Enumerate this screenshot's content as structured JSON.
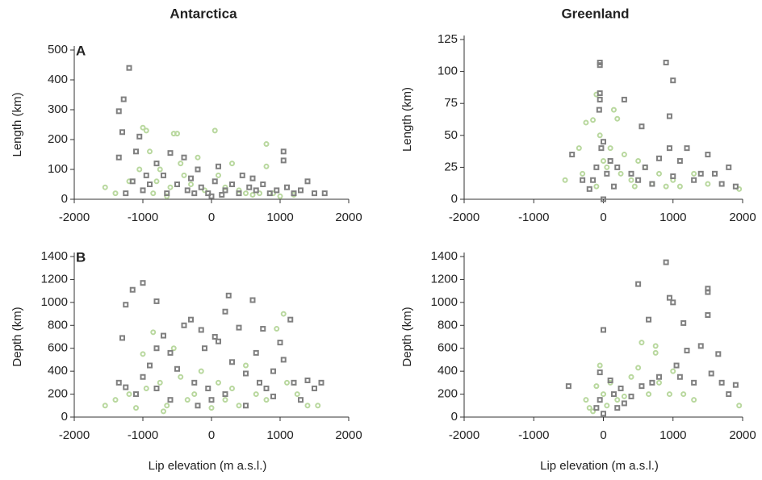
{
  "chart_data": [
    {
      "type": "scatter",
      "title": "Antarctica",
      "panel_label": "A",
      "ylabel": "Length (km)",
      "xlim": [
        -2000,
        2000
      ],
      "xticks": [
        -2000,
        -1000,
        0,
        1000,
        2000
      ],
      "ylim": [
        0,
        500
      ],
      "yticks": [
        0,
        100,
        200,
        300,
        400,
        500
      ],
      "series": [
        {
          "color": "#b9d89f",
          "marker": "circle",
          "x": [
            -1550,
            -1400,
            -1200,
            -1000,
            -950,
            -900,
            -1050,
            -800,
            -750,
            -600,
            -550,
            -500,
            -450,
            -400,
            -300,
            -200,
            -100,
            50,
            100,
            200,
            300,
            400,
            500,
            600,
            700,
            800,
            800,
            900,
            1000,
            1200,
            -850,
            -650
          ],
          "values": [
            40,
            20,
            60,
            240,
            230,
            160,
            100,
            60,
            100,
            40,
            220,
            220,
            120,
            80,
            50,
            140,
            30,
            230,
            80,
            40,
            120,
            30,
            20,
            15,
            20,
            185,
            110,
            20,
            10,
            15,
            20,
            10
          ]
        },
        {
          "color": "#808080",
          "marker": "square",
          "x": [
            -1200,
            -1280,
            -1350,
            -1300,
            -1050,
            -1100,
            -1350,
            -1150,
            -1000,
            -900,
            -800,
            -700,
            -600,
            -500,
            -400,
            -350,
            -300,
            -200,
            -150,
            -50,
            0,
            50,
            100,
            200,
            300,
            400,
            450,
            550,
            650,
            750,
            850,
            950,
            1050,
            1050,
            1100,
            1200,
            1300,
            1400,
            1500,
            1650,
            -1250,
            -950,
            -650,
            -250,
            150,
            600
          ],
          "values": [
            440,
            335,
            295,
            225,
            210,
            160,
            140,
            60,
            30,
            50,
            120,
            80,
            155,
            50,
            140,
            30,
            70,
            100,
            40,
            20,
            10,
            60,
            110,
            30,
            50,
            20,
            80,
            40,
            30,
            50,
            20,
            30,
            160,
            130,
            40,
            20,
            30,
            60,
            20,
            20,
            20,
            80,
            20,
            20,
            15,
            70
          ]
        }
      ]
    },
    {
      "type": "scatter",
      "title": "Greenland",
      "ylabel": "Length (km)",
      "xlim": [
        -2000,
        2000
      ],
      "xticks": [
        -2000,
        -1000,
        0,
        1000,
        2000
      ],
      "ylim": [
        0,
        125
      ],
      "yticks": [
        0,
        25,
        50,
        75,
        100,
        125
      ],
      "series": [
        {
          "color": "#b9d89f",
          "marker": "circle",
          "x": [
            -550,
            -350,
            -250,
            -150,
            -100,
            -50,
            0,
            50,
            100,
            150,
            200,
            250,
            300,
            400,
            450,
            500,
            600,
            700,
            800,
            900,
            1000,
            1100,
            1300,
            1500,
            1950,
            -300,
            -100
          ],
          "values": [
            15,
            40,
            60,
            62,
            82,
            50,
            30,
            25,
            40,
            70,
            63,
            20,
            35,
            15,
            10,
            30,
            25,
            12,
            20,
            10,
            15,
            10,
            20,
            12,
            8,
            20,
            10
          ]
        },
        {
          "color": "#808080",
          "marker": "square",
          "x": [
            -50,
            -50,
            -50,
            -50,
            -60,
            0,
            -30,
            -100,
            -150,
            -450,
            -300,
            50,
            100,
            150,
            200,
            300,
            400,
            500,
            550,
            600,
            700,
            800,
            900,
            950,
            1000,
            950,
            1000,
            1100,
            1200,
            1300,
            1400,
            1500,
            1600,
            1700,
            1800,
            1900,
            -200,
            0
          ],
          "values": [
            107,
            105,
            83,
            78,
            70,
            45,
            40,
            25,
            15,
            35,
            15,
            20,
            30,
            10,
            25,
            78,
            20,
            15,
            57,
            25,
            12,
            32,
            107,
            65,
            93,
            40,
            18,
            30,
            40,
            15,
            20,
            35,
            20,
            12,
            25,
            10,
            8,
            0
          ]
        }
      ]
    },
    {
      "type": "scatter",
      "panel_label": "B",
      "ylabel": "Depth (km)",
      "xlabel": "Lip elevation (m a.s.l.)",
      "xlim": [
        -2000,
        2000
      ],
      "xticks": [
        -2000,
        -1000,
        0,
        1000,
        2000
      ],
      "ylim": [
        0,
        1400
      ],
      "yticks": [
        0,
        200,
        400,
        600,
        800,
        1000,
        1200,
        1400
      ],
      "series": [
        {
          "color": "#b9d89f",
          "marker": "circle",
          "x": [
            -1550,
            -1400,
            -1200,
            -1000,
            -950,
            -850,
            -750,
            -650,
            -550,
            -450,
            -350,
            -250,
            -150,
            0,
            100,
            200,
            300,
            400,
            500,
            650,
            800,
            950,
            1050,
            1100,
            1250,
            1400,
            1550,
            -1100,
            -700
          ],
          "values": [
            100,
            150,
            200,
            550,
            250,
            740,
            300,
            100,
            600,
            350,
            150,
            200,
            400,
            80,
            300,
            150,
            250,
            100,
            450,
            200,
            150,
            770,
            900,
            300,
            200,
            100,
            100,
            80,
            50
          ]
        },
        {
          "color": "#808080",
          "marker": "square",
          "x": [
            -1000,
            -1150,
            -1250,
            -800,
            -1300,
            -1350,
            -1250,
            -1100,
            -1000,
            -900,
            -800,
            -700,
            -600,
            -500,
            -400,
            -300,
            -250,
            -150,
            -100,
            -50,
            0,
            50,
            100,
            200,
            250,
            300,
            400,
            500,
            600,
            650,
            700,
            750,
            800,
            900,
            1000,
            1050,
            1150,
            1200,
            1300,
            1400,
            1500,
            1600,
            -600,
            -200,
            200,
            500,
            -800,
            900
          ],
          "values": [
            1170,
            1110,
            980,
            1010,
            690,
            300,
            260,
            200,
            350,
            450,
            600,
            710,
            560,
            420,
            800,
            850,
            300,
            760,
            600,
            250,
            150,
            700,
            660,
            920,
            1060,
            480,
            780,
            380,
            1020,
            560,
            300,
            770,
            250,
            180,
            650,
            500,
            850,
            300,
            150,
            320,
            250,
            300,
            150,
            100,
            200,
            100,
            250,
            400
          ]
        }
      ]
    },
    {
      "type": "scatter",
      "ylabel": "Depth (km)",
      "xlabel": "Lip elevation (m a.s.l.)",
      "xlim": [
        -2000,
        2000
      ],
      "xticks": [
        -2000,
        -1000,
        0,
        1000,
        2000
      ],
      "ylim": [
        0,
        1400
      ],
      "yticks": [
        0,
        200,
        400,
        600,
        800,
        1000,
        1200,
        1400
      ],
      "series": [
        {
          "color": "#b9d89f",
          "marker": "circle",
          "x": [
            -250,
            -200,
            -100,
            -50,
            0,
            50,
            100,
            200,
            300,
            400,
            500,
            550,
            650,
            750,
            750,
            800,
            950,
            1000,
            1150,
            1300,
            1950,
            -150
          ],
          "values": [
            150,
            80,
            270,
            450,
            200,
            100,
            300,
            150,
            180,
            350,
            430,
            650,
            200,
            620,
            560,
            300,
            200,
            400,
            200,
            150,
            100,
            50
          ]
        },
        {
          "color": "#808080",
          "marker": "square",
          "x": [
            -500,
            -50,
            0,
            -50,
            -100,
            100,
            150,
            250,
            300,
            400,
            500,
            550,
            650,
            700,
            800,
            900,
            950,
            1000,
            1050,
            1100,
            1150,
            1200,
            1300,
            1400,
            1500,
            1500,
            1500,
            1550,
            1650,
            1700,
            1800,
            1900,
            0,
            200
          ],
          "values": [
            270,
            390,
            760,
            150,
            80,
            320,
            200,
            250,
            120,
            180,
            1160,
            270,
            850,
            300,
            350,
            1350,
            1040,
            1000,
            450,
            350,
            820,
            580,
            300,
            620,
            1120,
            1090,
            890,
            380,
            550,
            300,
            200,
            280,
            30,
            80
          ]
        }
      ]
    }
  ]
}
